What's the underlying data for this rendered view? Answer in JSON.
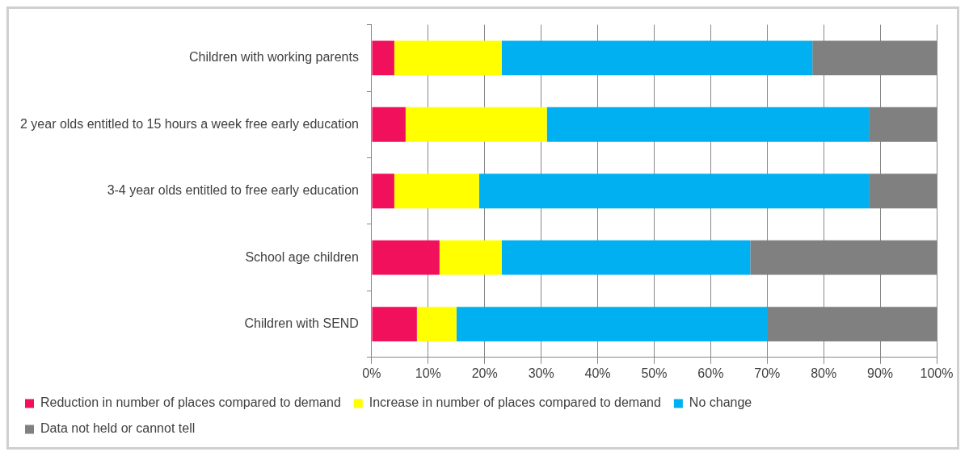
{
  "chart_data": {
    "type": "bar",
    "orientation": "horizontal",
    "stacked": true,
    "categories": [
      "Children with working parents",
      "2 year olds entitled to 15 hours a week free early education",
      "3-4 year olds entitled to free early education",
      "School age children",
      "Children with SEND"
    ],
    "series": [
      {
        "name": "Reduction in number of places compared to demand",
        "color": "#f0105c",
        "values": [
          4,
          6,
          4,
          12,
          8
        ]
      },
      {
        "name": "Increase in number of places compared to demand",
        "color": "#ffff00",
        "values": [
          19,
          25,
          15,
          11,
          7
        ]
      },
      {
        "name": "No change",
        "color": "#00b0f0",
        "values": [
          55,
          57,
          69,
          44,
          55
        ]
      },
      {
        "name": "Data not held or cannot tell",
        "color": "#808080",
        "values": [
          22,
          12,
          12,
          33,
          30
        ]
      }
    ],
    "xlim": [
      0,
      100
    ],
    "xticks": [
      {
        "value": 0,
        "label": "0%"
      },
      {
        "value": 10,
        "label": "10%"
      },
      {
        "value": 20,
        "label": "20%"
      },
      {
        "value": 30,
        "label": "30%"
      },
      {
        "value": 40,
        "label": "40%"
      },
      {
        "value": 50,
        "label": "50%"
      },
      {
        "value": 60,
        "label": "60%"
      },
      {
        "value": 70,
        "label": "70%"
      },
      {
        "value": 80,
        "label": "80%"
      },
      {
        "value": 90,
        "label": "90%"
      },
      {
        "value": 100,
        "label": "100%"
      }
    ],
    "grid": "x",
    "legend": "bottom"
  }
}
